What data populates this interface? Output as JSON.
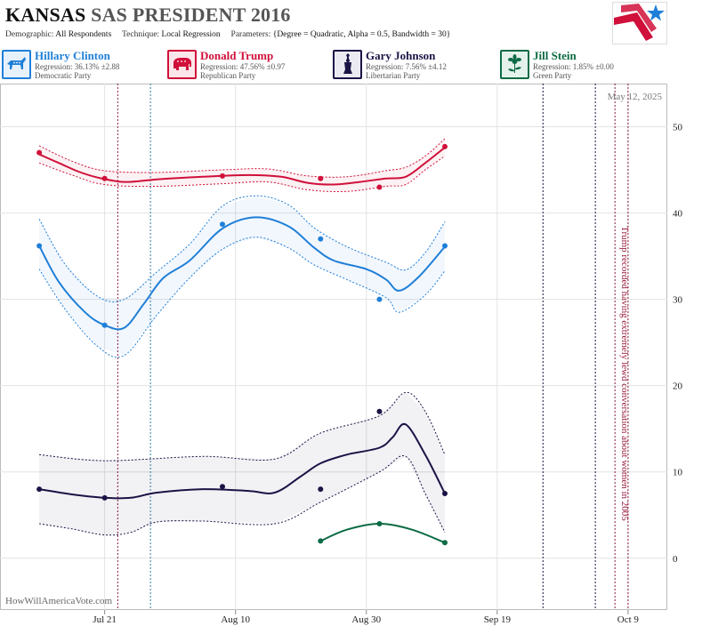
{
  "header": {
    "state": "KANSAS",
    "race": "SAS PRESIDENT 2016",
    "demographic_label": "Demographic:",
    "demographic_value": "All Respondents",
    "technique_label": "Technique:",
    "technique_value": "Local Regression",
    "parameters_label": "Parameters:",
    "parameters_value": "{Degree = Quadratic, Alpha = 0.5, Bandwidth = 30}"
  },
  "candidates": [
    {
      "name": "Hillary Clinton",
      "regression": "Regression: 36.13% ±2.88",
      "party": "Democratic Party",
      "color": "#1f7fd8",
      "icon": "donkey-icon"
    },
    {
      "name": "Donald Trump",
      "regression": "Regression: 47.56% ±0.97",
      "party": "Republican Party",
      "color": "#d0103a",
      "icon": "elephant-icon"
    },
    {
      "name": "Gary Johnson",
      "regression": "Regression: 7.56% ±4.12",
      "party": "Libertarian Party",
      "color": "#1a1446",
      "icon": "liberty-torch-icon"
    },
    {
      "name": "Jill Stein",
      "regression": "Regression: 1.85% ±0.00",
      "party": "Green Party",
      "color": "#0d6b45",
      "icon": "green-flower-icon"
    }
  ],
  "watermark": "HowWillAmericaVote.com",
  "chart_data": {
    "type": "line",
    "date_label": "May 12, 2025",
    "x_ticks": [
      {
        "date": "2016-07-21",
        "label": "Jul 21"
      },
      {
        "date": "2016-08-10",
        "label": "Aug 10"
      },
      {
        "date": "2016-08-30",
        "label": "Aug 30"
      },
      {
        "date": "2016-09-19",
        "label": "Sep 19"
      },
      {
        "date": "2016-10-09",
        "label": "Oct 9"
      }
    ],
    "xlim": [
      "2016-07-05",
      "2016-10-15"
    ],
    "ylim": [
      -6,
      55
    ],
    "y_ticks": [
      0,
      10,
      20,
      30,
      40,
      50
    ],
    "grid": true,
    "vlines": [
      {
        "date": "2016-07-23",
        "color": "#8b1a3a",
        "style": "dotted"
      },
      {
        "date": "2016-07-28",
        "color": "#2a7f9e",
        "style": "dotted"
      },
      {
        "date": "2016-09-26",
        "color": "#1a1446",
        "style": "dotted"
      },
      {
        "date": "2016-10-04",
        "color": "#1a1446",
        "style": "dotted"
      },
      {
        "date": "2016-10-07",
        "color": "#8b1a3a",
        "style": "dotted"
      },
      {
        "date": "2016-10-09",
        "color": "#8b1a3a",
        "style": "dotted"
      }
    ],
    "annotation": {
      "date": "2016-10-07",
      "text": "Trump recorded having extremely lewd conversation about women in 2005"
    },
    "series": [
      {
        "name": "Donald Trump",
        "color": "#d0103a",
        "points": [
          [
            "2016-07-11",
            47
          ],
          [
            "2016-07-21",
            44
          ],
          [
            "2016-08-08",
            44.3
          ],
          [
            "2016-08-23",
            44
          ],
          [
            "2016-09-01",
            43
          ],
          [
            "2016-09-11",
            47.7
          ]
        ],
        "curve": [
          [
            "2016-07-11",
            46.8
          ],
          [
            "2016-07-14",
            45.8
          ],
          [
            "2016-07-17",
            44.8
          ],
          [
            "2016-07-20",
            44.1
          ],
          [
            "2016-07-24",
            43.6
          ],
          [
            "2016-07-29",
            43.9
          ],
          [
            "2016-08-05",
            44.2
          ],
          [
            "2016-08-12",
            44.4
          ],
          [
            "2016-08-17",
            44.2
          ],
          [
            "2016-08-21",
            43.5
          ],
          [
            "2016-08-25",
            43.3
          ],
          [
            "2016-08-29",
            43.6
          ],
          [
            "2016-09-02",
            44.0
          ],
          [
            "2016-09-05",
            44.2
          ],
          [
            "2016-09-08",
            45.8
          ],
          [
            "2016-09-11",
            47.6
          ]
        ],
        "upper": [
          [
            "2016-07-11",
            47.8
          ],
          [
            "2016-07-16",
            46.0
          ],
          [
            "2016-07-21",
            44.9
          ],
          [
            "2016-07-29",
            44.7
          ],
          [
            "2016-08-08",
            45.0
          ],
          [
            "2016-08-15",
            45.1
          ],
          [
            "2016-08-21",
            44.3
          ],
          [
            "2016-08-27",
            44.2
          ],
          [
            "2016-09-02",
            44.9
          ],
          [
            "2016-09-05",
            45.3
          ],
          [
            "2016-09-08",
            46.6
          ],
          [
            "2016-09-11",
            48.6
          ]
        ],
        "lower": [
          [
            "2016-07-11",
            45.8
          ],
          [
            "2016-07-16",
            44.4
          ],
          [
            "2016-07-21",
            43.3
          ],
          [
            "2016-07-29",
            43.1
          ],
          [
            "2016-08-08",
            43.4
          ],
          [
            "2016-08-15",
            43.6
          ],
          [
            "2016-08-21",
            42.7
          ],
          [
            "2016-08-27",
            42.5
          ],
          [
            "2016-09-02",
            43.1
          ],
          [
            "2016-09-05",
            43.3
          ],
          [
            "2016-09-08",
            45.0
          ],
          [
            "2016-09-11",
            46.6
          ]
        ]
      },
      {
        "name": "Hillary Clinton",
        "color": "#1f7fd8",
        "points": [
          [
            "2016-07-11",
            36.2
          ],
          [
            "2016-07-21",
            27
          ],
          [
            "2016-08-08",
            38.7
          ],
          [
            "2016-08-23",
            37
          ],
          [
            "2016-09-01",
            30
          ],
          [
            "2016-09-11",
            36.2
          ]
        ],
        "curve": [
          [
            "2016-07-11",
            36.2
          ],
          [
            "2016-07-14",
            32.0
          ],
          [
            "2016-07-18",
            28.5
          ],
          [
            "2016-07-21",
            27.0
          ],
          [
            "2016-07-24",
            26.7
          ],
          [
            "2016-07-27",
            29.5
          ],
          [
            "2016-07-30",
            32.5
          ],
          [
            "2016-08-03",
            34.5
          ],
          [
            "2016-08-08",
            38.2
          ],
          [
            "2016-08-13",
            39.5
          ],
          [
            "2016-08-18",
            38.5
          ],
          [
            "2016-08-22",
            36.0
          ],
          [
            "2016-08-25",
            34.5
          ],
          [
            "2016-08-30",
            33.5
          ],
          [
            "2016-09-02",
            32.3
          ],
          [
            "2016-09-04",
            31.0
          ],
          [
            "2016-09-07",
            32.6
          ],
          [
            "2016-09-11",
            36.1
          ]
        ],
        "upper": [
          [
            "2016-07-11",
            39.3
          ],
          [
            "2016-07-15",
            34.0
          ],
          [
            "2016-07-20",
            30.3
          ],
          [
            "2016-07-24",
            30.0
          ],
          [
            "2016-07-29",
            33.2
          ],
          [
            "2016-08-03",
            36.4
          ],
          [
            "2016-08-08",
            40.8
          ],
          [
            "2016-08-13",
            42.0
          ],
          [
            "2016-08-18",
            41.0
          ],
          [
            "2016-08-22",
            38.3
          ],
          [
            "2016-08-27",
            36.1
          ],
          [
            "2016-09-02",
            34.3
          ],
          [
            "2016-09-05",
            33.4
          ],
          [
            "2016-09-08",
            35.4
          ],
          [
            "2016-09-11",
            39.0
          ]
        ],
        "lower": [
          [
            "2016-07-11",
            33.5
          ],
          [
            "2016-07-15",
            28.8
          ],
          [
            "2016-07-20",
            24.5
          ],
          [
            "2016-07-24",
            23.5
          ],
          [
            "2016-07-29",
            28.2
          ],
          [
            "2016-08-03",
            32.5
          ],
          [
            "2016-08-08",
            35.8
          ],
          [
            "2016-08-13",
            37.2
          ],
          [
            "2016-08-18",
            36.0
          ],
          [
            "2016-08-22",
            34.0
          ],
          [
            "2016-08-27",
            32.3
          ],
          [
            "2016-09-02",
            30.2
          ],
          [
            "2016-09-04",
            28.5
          ],
          [
            "2016-09-08",
            30.5
          ],
          [
            "2016-09-11",
            33.3
          ]
        ]
      },
      {
        "name": "Gary Johnson",
        "color": "#1a1446",
        "points": [
          [
            "2016-07-11",
            8
          ],
          [
            "2016-07-21",
            7
          ],
          [
            "2016-08-08",
            8.3
          ],
          [
            "2016-08-23",
            8
          ],
          [
            "2016-09-01",
            17
          ],
          [
            "2016-09-11",
            7.5
          ]
        ],
        "curve": [
          [
            "2016-07-11",
            8.0
          ],
          [
            "2016-07-16",
            7.4
          ],
          [
            "2016-07-21",
            7.0
          ],
          [
            "2016-07-25",
            7.0
          ],
          [
            "2016-07-29",
            7.6
          ],
          [
            "2016-08-05",
            8.0
          ],
          [
            "2016-08-12",
            7.8
          ],
          [
            "2016-08-16",
            7.6
          ],
          [
            "2016-08-20",
            9.5
          ],
          [
            "2016-08-23",
            11.0
          ],
          [
            "2016-08-27",
            12.0
          ],
          [
            "2016-09-01",
            12.8
          ],
          [
            "2016-09-03",
            14.0
          ],
          [
            "2016-09-05",
            15.5
          ],
          [
            "2016-09-08",
            12.0
          ],
          [
            "2016-09-11",
            7.5
          ]
        ],
        "upper": [
          [
            "2016-07-11",
            12.0
          ],
          [
            "2016-07-21",
            11.3
          ],
          [
            "2016-08-05",
            11.8
          ],
          [
            "2016-08-16",
            11.5
          ],
          [
            "2016-08-23",
            14.5
          ],
          [
            "2016-09-01",
            16.5
          ],
          [
            "2016-09-05",
            19.2
          ],
          [
            "2016-09-08",
            17.0
          ],
          [
            "2016-09-11",
            12.0
          ]
        ],
        "lower": [
          [
            "2016-07-11",
            4.0
          ],
          [
            "2016-07-16",
            3.4
          ],
          [
            "2016-07-21",
            2.7
          ],
          [
            "2016-07-25",
            3.0
          ],
          [
            "2016-07-29",
            4.2
          ],
          [
            "2016-08-05",
            4.3
          ],
          [
            "2016-08-16",
            4.0
          ],
          [
            "2016-08-23",
            6.5
          ],
          [
            "2016-09-01",
            10.0
          ],
          [
            "2016-09-05",
            11.8
          ],
          [
            "2016-09-08",
            7.5
          ],
          [
            "2016-09-11",
            3.0
          ]
        ]
      },
      {
        "name": "Jill Stein",
        "color": "#0d6b45",
        "points": [
          [
            "2016-08-23",
            2
          ],
          [
            "2016-09-01",
            4
          ],
          [
            "2016-09-11",
            1.8
          ]
        ],
        "curve": [
          [
            "2016-08-23",
            2.0
          ],
          [
            "2016-08-27",
            3.3
          ],
          [
            "2016-09-01",
            4.0
          ],
          [
            "2016-09-06",
            3.3
          ],
          [
            "2016-09-11",
            1.8
          ]
        ]
      }
    ]
  }
}
